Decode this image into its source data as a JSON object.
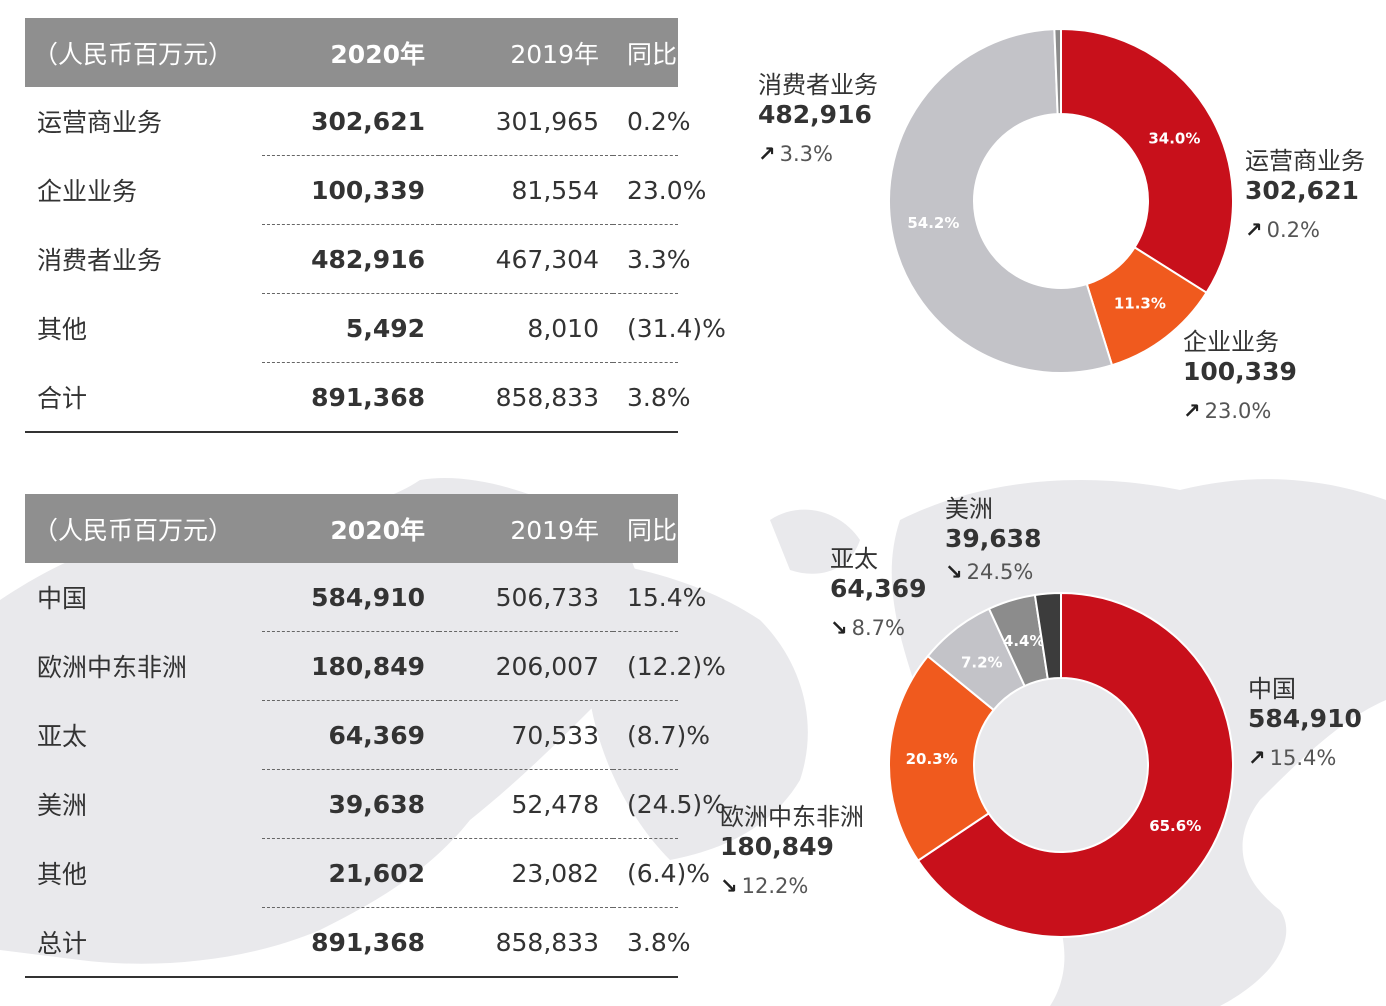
{
  "colors": {
    "header_bg": "#8f8f8f",
    "red": "#c8101b",
    "orange": "#f05a1e",
    "light_gray": "#c3c3c8",
    "mid_gray": "#8c8c8c",
    "gray": "#5f5f5f",
    "dark_gray": "#3c3c3c"
  },
  "table1": {
    "headers": [
      "（人民币百万元）",
      "2020年",
      "2019年",
      "同比变动"
    ],
    "rows": [
      {
        "name": "运营商业务",
        "v2020": "302,621",
        "v2019": "301,965",
        "change": "0.2%"
      },
      {
        "name": "企业业务",
        "v2020": "100,339",
        "v2019": "81,554",
        "change": "23.0%"
      },
      {
        "name": "消费者业务",
        "v2020": "482,916",
        "v2019": "467,304",
        "change": "3.3%"
      },
      {
        "name": "其他",
        "v2020": "5,492",
        "v2019": "8,010",
        "change": "(31.4)%"
      },
      {
        "name": "合计",
        "v2020": "891,368",
        "v2019": "858,833",
        "change": "3.8%"
      }
    ]
  },
  "table2": {
    "headers": [
      "（人民币百万元）",
      "2020年",
      "2019年",
      "同比变动"
    ],
    "rows": [
      {
        "name": "中国",
        "v2020": "584,910",
        "v2019": "506,733",
        "change": "15.4%"
      },
      {
        "name": "欧洲中东非洲",
        "v2020": "180,849",
        "v2019": "206,007",
        "change": "(12.2)%"
      },
      {
        "name": "亚太",
        "v2020": "64,369",
        "v2019": "70,533",
        "change": "(8.7)%"
      },
      {
        "name": "美洲",
        "v2020": "39,638",
        "v2019": "52,478",
        "change": "(24.5)%"
      },
      {
        "name": "其他",
        "v2020": "21,602",
        "v2019": "23,082",
        "change": "(6.4)%"
      },
      {
        "name": "总计",
        "v2020": "891,368",
        "v2019": "858,833",
        "change": "3.8%"
      }
    ]
  },
  "chart_data": [
    {
      "type": "pie",
      "donut": true,
      "segments": [
        {
          "name": "运营商业务",
          "value": 302621,
          "pct_label": "34.0%",
          "change": "0.2%",
          "direction": "up",
          "color": "#c8101b"
        },
        {
          "name": "企业业务",
          "value": 100339,
          "pct_label": "11.3%",
          "change": "23.0%",
          "direction": "up",
          "color": "#f05a1e"
        },
        {
          "name": "消费者业务",
          "value": 482916,
          "pct_label": "54.2%",
          "change": "3.3%",
          "direction": "up",
          "color": "#c3c3c8"
        },
        {
          "name": "其他",
          "value": 5492,
          "pct_label": "",
          "change": "",
          "direction": "",
          "color": "#8c8c8c"
        }
      ]
    },
    {
      "type": "pie",
      "donut": true,
      "segments": [
        {
          "name": "中国",
          "value": 584910,
          "pct_label": "65.6%",
          "change": "15.4%",
          "direction": "up",
          "color": "#c8101b"
        },
        {
          "name": "欧洲中东非洲",
          "value": 180849,
          "pct_label": "20.3%",
          "change": "12.2%",
          "direction": "down",
          "color": "#f05a1e"
        },
        {
          "name": "亚太",
          "value": 64369,
          "pct_label": "7.2%",
          "change": "8.7%",
          "direction": "down",
          "color": "#c3c3c8"
        },
        {
          "name": "美洲",
          "value": 39638,
          "pct_label": "4.4%",
          "change": "24.5%",
          "direction": "down",
          "color": "#8c8c8c"
        },
        {
          "name": "其他",
          "value": 21602,
          "pct_label": "",
          "change": "",
          "direction": "",
          "color": "#3c3c3c"
        }
      ]
    }
  ],
  "labels1": [
    {
      "name": "消费者业务",
      "value": "482,916",
      "arrow": "↗",
      "change": "3.3%"
    },
    {
      "name": "运营商业务",
      "value": "302,621",
      "arrow": "↗",
      "change": "0.2%"
    },
    {
      "name": "企业业务",
      "value": "100,339",
      "arrow": "↗",
      "change": "23.0%"
    }
  ],
  "labels2": [
    {
      "name": "美洲",
      "value": "39,638",
      "arrow": "↘",
      "change": "24.5%"
    },
    {
      "name": "亚太",
      "value": "64,369",
      "arrow": "↘",
      "change": "8.7%"
    },
    {
      "name": "中国",
      "value": "584,910",
      "arrow": "↗",
      "change": "15.4%"
    },
    {
      "name": "欧洲中东非洲",
      "value": "180,849",
      "arrow": "↘",
      "change": "12.2%"
    }
  ]
}
